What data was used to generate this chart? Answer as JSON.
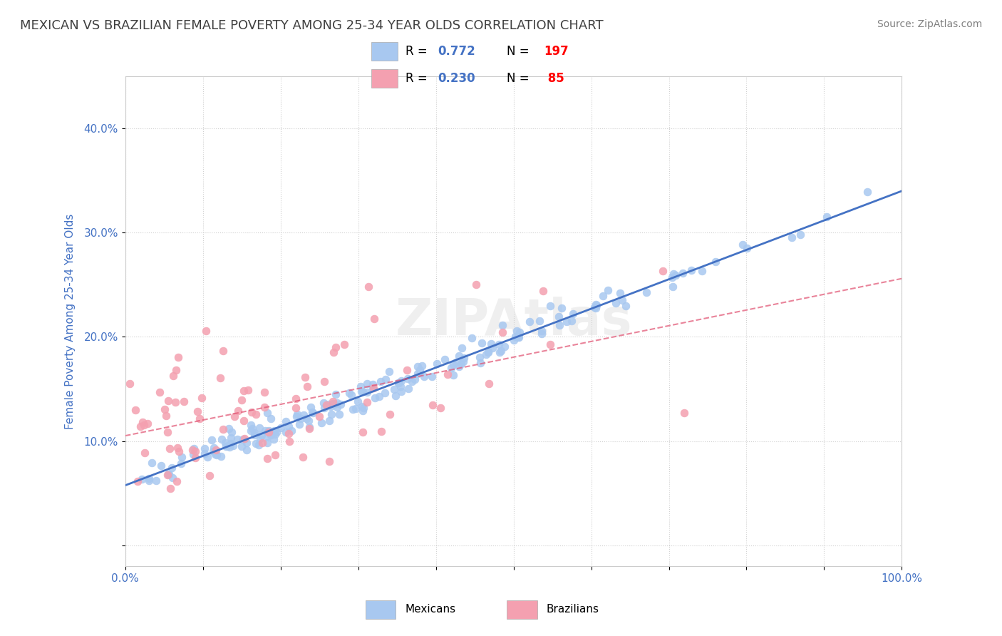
{
  "title": "MEXICAN VS BRAZILIAN FEMALE POVERTY AMONG 25-34 YEAR OLDS CORRELATION CHART",
  "source": "Source: ZipAtlas.com",
  "xlabel": "",
  "ylabel": "Female Poverty Among 25-34 Year Olds",
  "xlim": [
    0.0,
    1.0
  ],
  "ylim": [
    -0.02,
    0.45
  ],
  "xticks": [
    0.0,
    0.1,
    0.2,
    0.3,
    0.4,
    0.5,
    0.6,
    0.7,
    0.8,
    0.9,
    1.0
  ],
  "xtick_labels": [
    "0.0%",
    "",
    "",
    "",
    "",
    "",
    "",
    "",
    "",
    "",
    "100.0%"
  ],
  "yticks": [
    0.0,
    0.1,
    0.2,
    0.3,
    0.4
  ],
  "ytick_labels": [
    "",
    "10.0%",
    "20.0%",
    "30.0%",
    "40.0%"
  ],
  "mexican_R": 0.772,
  "mexican_N": 197,
  "brazilian_R": 0.23,
  "brazilian_N": 85,
  "mexican_color": "#a8c8f0",
  "mexican_line_color": "#4472c4",
  "brazilian_color": "#f4a0b0",
  "brazilian_line_color": "#e05070",
  "watermark": "ZIPAtlas",
  "legend_box_color": "#f0f0f0",
  "title_color": "#404040",
  "axis_label_color": "#4472c4",
  "tick_color": "#4472c4",
  "grid_color": "#d0d0d0",
  "source_color": "#808080"
}
